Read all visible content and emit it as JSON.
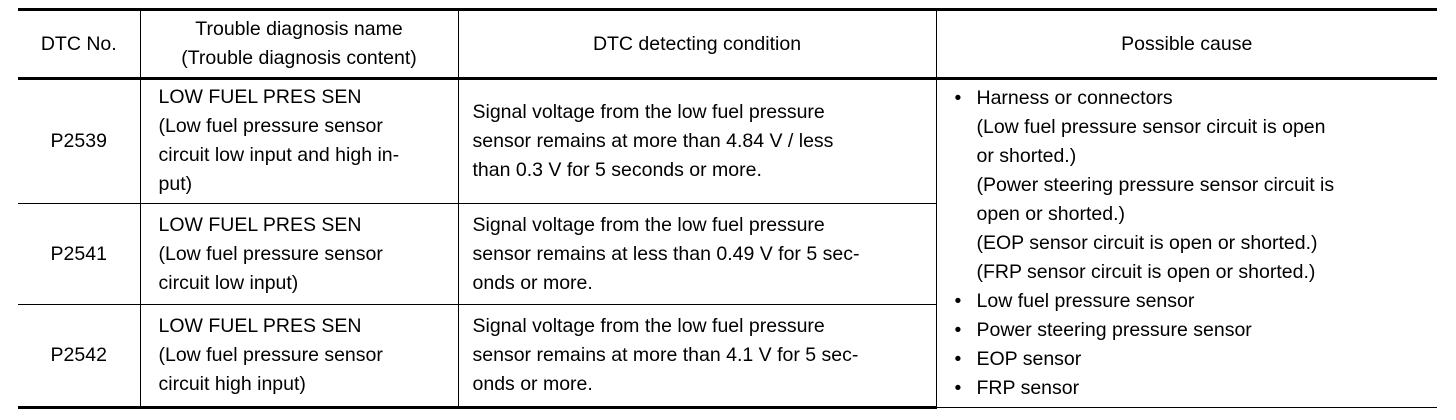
{
  "headers": {
    "code": "DTC No.",
    "name_line1": "Trouble diagnosis name",
    "name_line2": "(Trouble diagnosis content)",
    "condition": "DTC detecting condition",
    "cause": "Possible cause"
  },
  "rows": [
    {
      "code": "P2539",
      "name": [
        "LOW FUEL PRES SEN",
        "(Low fuel pressure sensor",
        "circuit low input and high in-",
        "put)"
      ],
      "condition": [
        "Signal voltage from the low fuel pressure",
        "sensor remains at more than 4.84 V / less",
        "than 0.3 V for 5 seconds or more."
      ]
    },
    {
      "code": "P2541",
      "name": [
        "LOW FUEL PRES SEN",
        "(Low fuel pressure sensor",
        "circuit low input)"
      ],
      "condition": [
        "Signal voltage from the low fuel pressure",
        "sensor remains at less than 0.49 V for 5 sec-",
        "onds or more."
      ]
    },
    {
      "code": "P2542",
      "name": [
        "LOW FUEL PRES SEN",
        "(Low fuel pressure sensor",
        "circuit high input)"
      ],
      "condition": [
        "Signal voltage from the low fuel pressure",
        "sensor remains at more than 4.1 V for 5 sec-",
        "onds or more."
      ]
    }
  ],
  "possible_cause": {
    "bullet": "•",
    "items": [
      {
        "text": "Harness or connectors",
        "details": [
          "(Low fuel pressure sensor circuit is open",
          "or shorted.)",
          "(Power steering pressure sensor circuit is",
          "open or shorted.)",
          "(EOP sensor circuit is open or shorted.)",
          "(FRP sensor circuit is open or shorted.)"
        ]
      },
      {
        "text": "Low fuel pressure sensor"
      },
      {
        "text": "Power steering pressure sensor"
      },
      {
        "text": "EOP sensor"
      },
      {
        "text": "FRP sensor"
      }
    ]
  }
}
